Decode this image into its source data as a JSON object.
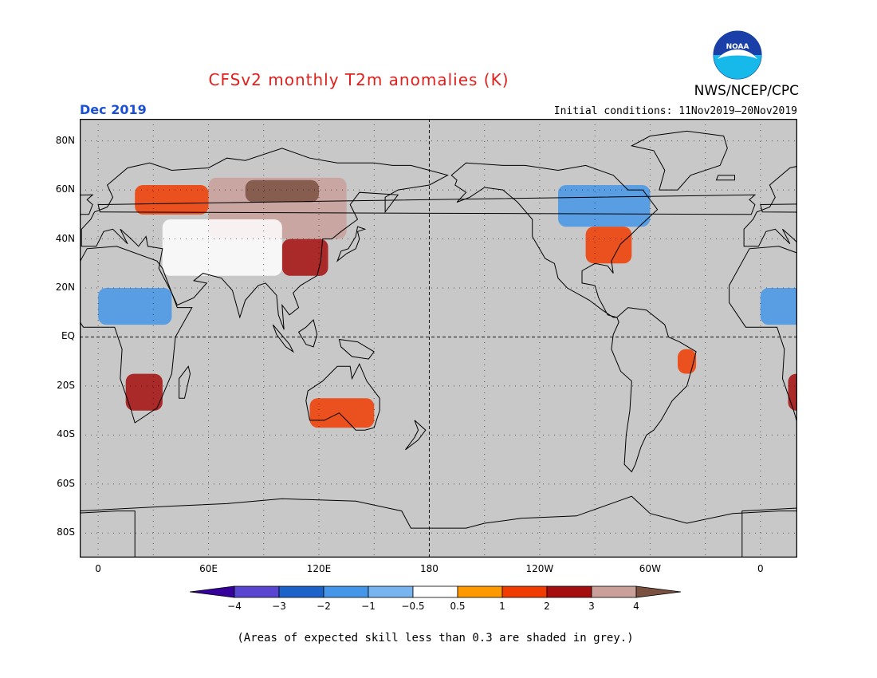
{
  "title": "CFSv2 monthly T2m anomalies (K)",
  "organization": "NWS/NCEP/CPC",
  "logo_text": "NOAA",
  "month": "Dec 2019",
  "initial_conditions": "Initial conditions: 11Nov2019–20Nov2019",
  "footnote": "(Areas of expected skill less than 0.3 are shaded in grey.)",
  "colors": {
    "title": "#e0201c",
    "month": "#1a4fd6",
    "skill_grey": "#c8c8c8",
    "coast": "#000000"
  },
  "map": {
    "projection": "cylindrical equidistant, 0E centered at left, wrapping",
    "lon_ticks": [
      {
        "label": "0",
        "lon": 0
      },
      {
        "label": "60E",
        "lon": 60
      },
      {
        "label": "120E",
        "lon": 120
      },
      {
        "label": "180",
        "lon": 180
      },
      {
        "label": "120W",
        "lon": 240
      },
      {
        "label": "60W",
        "lon": 300
      },
      {
        "label": "0",
        "lon": 360
      }
    ],
    "lat_ticks": [
      {
        "label": "80N",
        "lat": 80
      },
      {
        "label": "60N",
        "lat": 60
      },
      {
        "label": "40N",
        "lat": 40
      },
      {
        "label": "20N",
        "lat": 20
      },
      {
        "label": "EQ",
        "lat": 0
      },
      {
        "label": "20S",
        "lat": -20
      },
      {
        "label": "40S",
        "lat": -40
      },
      {
        "label": "60S",
        "lat": -60
      },
      {
        "label": "80S",
        "lat": -80
      }
    ],
    "lon_range": [
      -10,
      380
    ],
    "lat_range": [
      -90,
      89
    ],
    "grid": "dotted every 30 degrees"
  },
  "colorbar": {
    "bins": [
      {
        "color": "#35009b"
      },
      {
        "color": "#5846d0"
      },
      {
        "color": "#1d62c9"
      },
      {
        "color": "#4595e8"
      },
      {
        "color": "#78b5f0"
      },
      {
        "color": "#ffffff"
      },
      {
        "color": "#ff9900"
      },
      {
        "color": "#f03c00"
      },
      {
        "color": "#a50e0e"
      },
      {
        "color": "#c9a09a"
      },
      {
        "color": "#7a5040"
      }
    ],
    "labels": [
      "−4",
      "−3",
      "−2",
      "−1",
      "−0.5",
      "0.5",
      "1",
      "2",
      "3",
      "4"
    ]
  },
  "chart_data": {
    "type": "heatmap",
    "title": "CFSv2 monthly T2m anomalies (K)",
    "variable": "2 m temperature anomaly",
    "units": "K",
    "valid_month": "Dec 2019",
    "regions": [
      {
        "lon_range": [
          60,
          135
        ],
        "lat_range": [
          40,
          65
        ],
        "anomaly": 3.5
      },
      {
        "lon_range": [
          80,
          120
        ],
        "lat_range": [
          55,
          64
        ],
        "anomaly": 4.5
      },
      {
        "lon_range": [
          20,
          60
        ],
        "lat_range": [
          50,
          62
        ],
        "anomaly": 1.5
      },
      {
        "lon_range": [
          100,
          125
        ],
        "lat_range": [
          25,
          40
        ],
        "anomaly": 2.5
      },
      {
        "lon_range": [
          35,
          100
        ],
        "lat_range": [
          25,
          48
        ],
        "anomaly": 0.0
      },
      {
        "lon_range": [
          0,
          40
        ],
        "lat_range": [
          5,
          20
        ],
        "anomaly": -1.5
      },
      {
        "lon_range": [
          15,
          35
        ],
        "lat_range": [
          -30,
          -15
        ],
        "anomaly": 2.0
      },
      {
        "lon_range": [
          115,
          150
        ],
        "lat_range": [
          -37,
          -25
        ],
        "anomaly": 1.5
      },
      {
        "lon_range": [
          250,
          300
        ],
        "lat_range": [
          45,
          62
        ],
        "anomaly": -1.5
      },
      {
        "lon_range": [
          265,
          290
        ],
        "lat_range": [
          30,
          45
        ],
        "anomaly": 1.0
      },
      {
        "lon_range": [
          315,
          325
        ],
        "lat_range": [
          -15,
          -5
        ],
        "anomaly": 1.5
      }
    ]
  }
}
